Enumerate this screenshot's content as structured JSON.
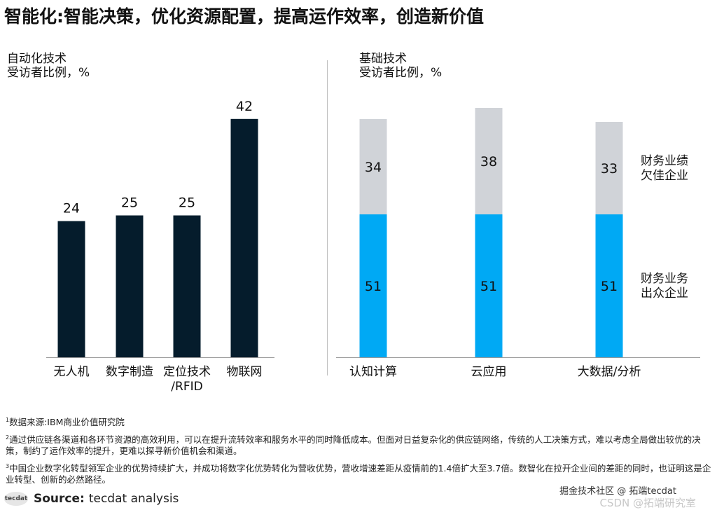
{
  "title": "智能化:智能决策，优化资源配置，提高运作效率，创造新价值",
  "chart_data": [
    {
      "type": "bar",
      "title": "自动化技术",
      "subtitle": "受访者比例，%",
      "categories": [
        "无人机",
        "数字制造",
        "定位技术/RFID",
        "物联网"
      ],
      "category_lines": [
        [
          "无人机"
        ],
        [
          "数字制造"
        ],
        [
          "定位技术",
          "/RFID"
        ],
        [
          "物联网"
        ]
      ],
      "values": [
        24,
        25,
        25,
        42
      ],
      "ylim": [
        0,
        50
      ],
      "color": "#051c2c"
    },
    {
      "type": "bar",
      "stacked": true,
      "title": "基础技术",
      "subtitle": "受访者比例，%",
      "categories": [
        "认知计算",
        "云应用",
        "大数据/分析"
      ],
      "series": [
        {
          "name": "财务业务出众企业",
          "label_lines": [
            "财务业务",
            "出众企业"
          ],
          "values": [
            51,
            51,
            51
          ],
          "color": "#00a9f4"
        },
        {
          "name": "财务业绩欠佳企业",
          "label_lines": [
            "财务业绩",
            "欠佳企业"
          ],
          "values": [
            34,
            38,
            33
          ],
          "color": "#d0d3d8"
        }
      ],
      "ylim": [
        0,
        100
      ]
    }
  ],
  "footnotes": [
    {
      "num": "1",
      "text": "数据来源:IBM商业价值研究院"
    },
    {
      "num": "2",
      "text": "通过供应链各渠道和各环节资源的高效利用，可以在提升流转效率和服务水平的同时降低成本。但面对日益复杂化的供应链网络，传统的人工决策方式，难以考虑全局做出较优的决策，制约了运作效率的提升，更难以探寻新价值机会和渠道。"
    },
    {
      "num": "3",
      "text": "中国企业数字化转型领军企业的优势持续扩大，并成功将数字化优势转化为营收优势，营收增速差距从疫情前的1.4倍扩大至3.7倍。数智化在拉开企业间的差距的同时，也证明这是企业转型、创新的必然路径。"
    }
  ],
  "source": {
    "logo": "tecdat",
    "label": "Source:",
    "text": "tecdat analysis"
  },
  "watermark": "掘金技术社区 @ 拓端tecdat",
  "watermark2": "CSDN @拓端研究室"
}
